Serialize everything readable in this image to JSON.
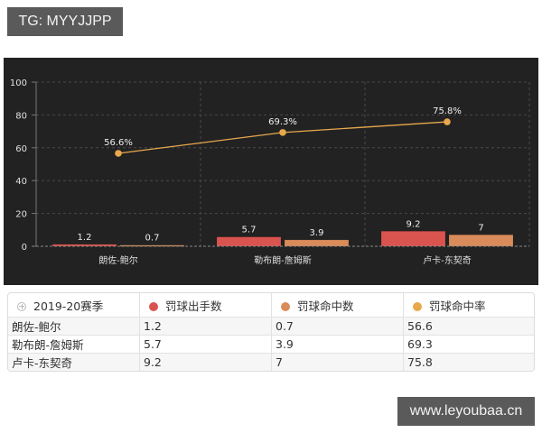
{
  "watermarks": {
    "top": "TG: MYYJJPP",
    "bottom": "www.leyoubaa.cn"
  },
  "colors": {
    "attempts": "#d9534f",
    "made": "#d98c5a",
    "rate": "#e8a84c",
    "background": "#222222"
  },
  "chart_data": {
    "type": "bar",
    "title": "",
    "xlabel": "",
    "ylabel": "",
    "ylim": [
      0,
      100
    ],
    "yticks": [
      0,
      20,
      40,
      60,
      80,
      100
    ],
    "grid": true,
    "categories": [
      "朗佐-鲍尔",
      "勒布朗-詹姆斯",
      "卢卡-东契奇"
    ],
    "series": [
      {
        "name": "罚球出手数",
        "type": "bar",
        "values": [
          1.2,
          5.7,
          9.2
        ],
        "labels": [
          "1.2",
          "5.7",
          "9.2"
        ]
      },
      {
        "name": "罚球命中数",
        "type": "bar",
        "values": [
          0.7,
          3.9,
          7
        ],
        "labels": [
          "0.7",
          "3.9",
          "7"
        ]
      },
      {
        "name": "罚球命中率",
        "type": "line",
        "values": [
          56.6,
          69.3,
          75.8
        ],
        "labels": [
          "56.6%",
          "69.3%",
          "75.8%"
        ]
      }
    ]
  },
  "table": {
    "header": [
      "2019-20赛季",
      "罚球出手数",
      "罚球命中数",
      "罚球命中率"
    ],
    "rows": [
      [
        "朗佐-鲍尔",
        "1.2",
        "0.7",
        "56.6"
      ],
      [
        "勒布朗-詹姆斯",
        "5.7",
        "3.9",
        "69.3"
      ],
      [
        "卢卡-东契奇",
        "9.2",
        "7",
        "75.8"
      ]
    ]
  }
}
